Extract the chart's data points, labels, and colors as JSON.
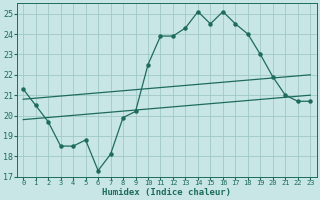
{
  "title": "",
  "xlabel": "Humidex (Indice chaleur)",
  "ylabel": "",
  "xlim": [
    -0.5,
    23.5
  ],
  "ylim": [
    17,
    25.5
  ],
  "yticks": [
    17,
    18,
    19,
    20,
    21,
    22,
    23,
    24,
    25
  ],
  "xticks": [
    0,
    1,
    2,
    3,
    4,
    5,
    6,
    7,
    8,
    9,
    10,
    11,
    12,
    13,
    14,
    15,
    16,
    17,
    18,
    19,
    20,
    21,
    22,
    23
  ],
  "bg_color": "#c8e6e6",
  "grid_color": "#a0c8c8",
  "line_color": "#1e6b5e",
  "line1_x": [
    0,
    1,
    2,
    3,
    4,
    5,
    6,
    7,
    8,
    9,
    10,
    11,
    12,
    13,
    14,
    15,
    16,
    17,
    18,
    19,
    20,
    21,
    22,
    23
  ],
  "line1_y": [
    21.3,
    20.5,
    19.7,
    18.5,
    18.5,
    18.8,
    17.3,
    18.1,
    19.9,
    20.2,
    22.5,
    23.9,
    23.9,
    24.3,
    25.1,
    24.5,
    25.1,
    24.5,
    24.0,
    23.0,
    21.9,
    21.0,
    20.7,
    20.7
  ],
  "line2_x": [
    0,
    23
  ],
  "line2_y": [
    20.8,
    22.0
  ],
  "line3_x": [
    0,
    23
  ],
  "line3_y": [
    19.8,
    21.0
  ],
  "figwidth": 3.2,
  "figheight": 2.0,
  "dpi": 100
}
